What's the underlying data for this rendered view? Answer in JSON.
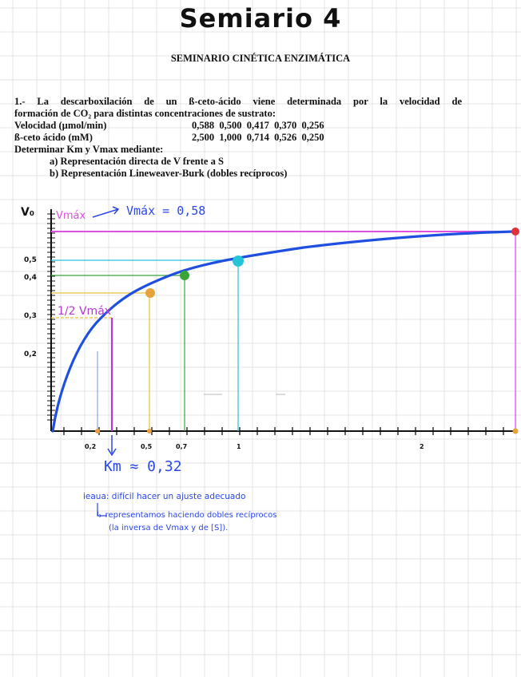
{
  "page": {
    "handwritten_title": "Semiario 4",
    "printed_title": "SEMINARIO CINÉTICA ENZIMÁTICA"
  },
  "problem": {
    "line1": "1.- La descarboxilación de un ß-ceto-ácido viene determinada por la velocidad de",
    "line2": "formación de CO₂ para distintas concentraciones de sustrato:",
    "velocity_label": "Velocidad (µmol/min)",
    "velocity_values": "0,588  0,500  0,417  0,370  0,256",
    "substrate_label": "ß-ceto ácido (mM)",
    "substrate_values": "2,500  1,000  0,714  0,526  0,250",
    "determine": "Determinar Km y Vmax mediante:",
    "option_a": "a) Representación directa de V frente a S",
    "option_b": "b) Representación Lineweaver-Burk (dobles recíprocos)"
  },
  "graph": {
    "y_axis_label": "V₀",
    "vmax_tag": "Vmáx",
    "vmax_note": "Vmáx = 0,58",
    "half_vmax": "1/2 Vmáx",
    "km_note": "Km ≈ 0,32",
    "y_ticks": [
      "0,5",
      "0,4",
      "0,3",
      "0,2"
    ],
    "x_ticks": [
      "0,2",
      "0,5",
      "0,7",
      "1",
      "2"
    ],
    "colors": {
      "curve": "#1f4fe0",
      "vmax": "#e14fe0",
      "point_1": "#e8a23c",
      "point_2": "#3aa33a",
      "point_3": "#27c3d8",
      "point_4": "#e0303a",
      "km_marker": "#b23ad0",
      "notes": "#2c46e8"
    }
  },
  "notes": {
    "line1": "ieaua: difícil hacer un ajuste adecuado",
    "line2": "↳ representamos haciendo dobles recíprocos",
    "line3": "(la inversa de Vmax y de [S])."
  }
}
